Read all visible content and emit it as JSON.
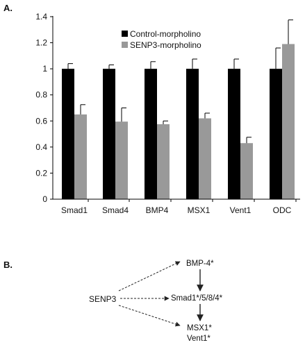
{
  "panel_a_label": "A.",
  "panel_b_label": "B.",
  "chart_data": {
    "type": "bar",
    "categories": [
      "Smad1",
      "Smad4",
      "BMP4",
      "MSX1",
      "Vent1",
      "ODC"
    ],
    "series": [
      {
        "name": "Control-morpholino",
        "color": "#000000",
        "values": [
          1.0,
          1.0,
          1.0,
          1.0,
          1.0,
          1.0
        ],
        "errors": [
          0.04,
          0.03,
          0.055,
          0.075,
          0.075,
          0.16
        ]
      },
      {
        "name": "SENP3-morpholino",
        "color": "#999999",
        "values": [
          0.65,
          0.595,
          0.575,
          0.62,
          0.43,
          1.19
        ],
        "errors": [
          0.075,
          0.105,
          0.025,
          0.04,
          0.045,
          0.185
        ]
      }
    ],
    "ylim": [
      0,
      1.4
    ],
    "yticks": [
      "0",
      "0.2",
      "0.4",
      "0.6",
      "0.8",
      "1",
      "1.2",
      "1.4"
    ],
    "grid": false,
    "legend_position": "top-right"
  },
  "diagram": {
    "source": "SENP3",
    "nodes": [
      "BMP-4*",
      "Smad1*/5/8/4*",
      "MSX1*",
      "Vent1*"
    ]
  }
}
